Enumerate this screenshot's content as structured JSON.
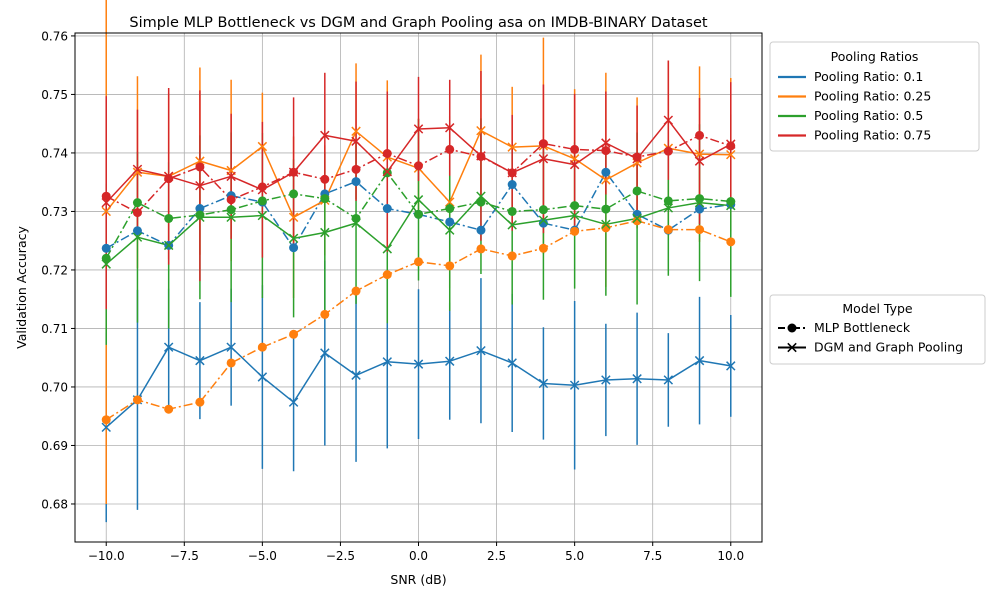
{
  "chart_data": {
    "type": "line",
    "title": "Simple MLP Bottleneck vs DGM and Graph Pooling asa on IMDB-BINARY Dataset",
    "xlabel": "SNR (dB)",
    "ylabel": "Validation Accuracy",
    "xlim": [
      -11,
      11
    ],
    "ylim": [
      0.6735,
      0.7605
    ],
    "xticks": [
      -10.0,
      -7.5,
      -5.0,
      -2.5,
      0.0,
      2.5,
      5.0,
      7.5,
      10.0
    ],
    "xtick_labels": [
      "−10.0",
      "−7.5",
      "−5.0",
      "−2.5",
      "0.0",
      "2.5",
      "5.0",
      "7.5",
      "10.0"
    ],
    "yticks": [
      0.68,
      0.69,
      0.7,
      0.71,
      0.72,
      0.73,
      0.74,
      0.75,
      0.76
    ],
    "ytick_labels": [
      "0.68",
      "0.69",
      "0.70",
      "0.71",
      "0.72",
      "0.73",
      "0.74",
      "0.75",
      "0.76"
    ],
    "grid": true,
    "x": [
      -10,
      -9,
      -8,
      -7,
      -6,
      -5,
      -4,
      -3,
      -2,
      -1,
      0,
      1,
      2,
      3,
      4,
      5,
      6,
      7,
      8,
      9,
      10
    ],
    "legends": [
      {
        "title": "Pooling Ratios",
        "placement": "outside-top-right",
        "entries": [
          "Pooling Ratio: 0.1",
          "Pooling Ratio: 0.25",
          "Pooling Ratio: 0.5",
          "Pooling Ratio: 0.75"
        ],
        "colors": [
          "#1f77b4",
          "#ff7f0e",
          "#2ca02c",
          "#d62728"
        ]
      },
      {
        "title": "Model Type",
        "placement": "outside-middle-right",
        "entries": [
          "MLP Bottleneck",
          "DGM and Graph Pooling"
        ],
        "markers": [
          "circle",
          "x"
        ],
        "line_styles": [
          "dashdot",
          "solid"
        ]
      }
    ],
    "series": [
      {
        "ratio": "Pooling Ratio: 0.1",
        "model": "MLP Bottleneck",
        "color": "#1f77b4",
        "marker": "circle",
        "line_style": "dashdot",
        "values": [
          0.7237,
          0.7267,
          0.7242,
          0.7305,
          0.7327,
          0.7316,
          0.7238,
          0.733,
          0.7351,
          0.7305,
          0.7295,
          0.7282,
          0.7268,
          0.7346,
          0.728,
          0.7268,
          0.7367,
          0.7295,
          0.7268,
          0.7304,
          0.7312
        ]
      },
      {
        "ratio": "Pooling Ratio: 0.1",
        "model": "DGM and Graph Pooling",
        "color": "#1f77b4",
        "marker": "x",
        "line_style": "solid",
        "values": [
          0.6931,
          0.6978,
          0.7068,
          0.7045,
          0.7068,
          0.7017,
          0.6974,
          0.7058,
          0.702,
          0.7043,
          0.7039,
          0.7044,
          0.7062,
          0.7041,
          0.7006,
          0.7003,
          0.7012,
          0.7014,
          0.7012,
          0.7045,
          0.7036
        ],
        "errors": [
          0.0162,
          0.0188,
          0.01,
          0.01,
          0.01,
          0.0157,
          0.0118,
          0.0158,
          0.0148,
          0.0148,
          0.0128,
          0.01,
          0.0124,
          0.0118,
          0.0096,
          0.0144,
          0.0096,
          0.0113,
          0.008,
          0.0109,
          0.0087
        ]
      },
      {
        "ratio": "Pooling Ratio: 0.25",
        "model": "MLP Bottleneck",
        "color": "#ff7f0e",
        "marker": "circle",
        "line_style": "dashdot",
        "values": [
          0.6944,
          0.6978,
          0.6962,
          0.6974,
          0.7041,
          0.7068,
          0.709,
          0.7124,
          0.7164,
          0.7192,
          0.7214,
          0.7207,
          0.7236,
          0.7224,
          0.7237,
          0.7266,
          0.7272,
          0.7284,
          0.7269,
          0.7269,
          0.7248
        ]
      },
      {
        "ratio": "Pooling Ratio: 0.25",
        "model": "DGM and Graph Pooling",
        "color": "#ff7f0e",
        "marker": "x",
        "line_style": "solid",
        "values": [
          0.73,
          0.7367,
          0.736,
          0.7386,
          0.737,
          0.7411,
          0.729,
          0.7319,
          0.7437,
          0.7393,
          0.7374,
          0.7316,
          0.7438,
          0.741,
          0.7412,
          0.739,
          0.7354,
          0.7383,
          0.7408,
          0.7398,
          0.7397
        ],
        "errors": [
          0.05,
          0.0164,
          0.0142,
          0.016,
          0.0155,
          0.0092,
          0.0138,
          0.0094,
          0.0116,
          0.0131,
          0.0085,
          0.0147,
          0.013,
          0.0103,
          0.0185,
          0.0119,
          0.0183,
          0.0112,
          0.015,
          0.015,
          0.0131
        ]
      },
      {
        "ratio": "Pooling Ratio: 0.5",
        "model": "MLP Bottleneck",
        "color": "#2ca02c",
        "marker": "circle",
        "line_style": "dashdot",
        "values": [
          0.722,
          0.7315,
          0.7288,
          0.7294,
          0.7303,
          0.7318,
          0.733,
          0.7322,
          0.7288,
          0.7366,
          0.7295,
          0.7305,
          0.7316,
          0.73,
          0.7303,
          0.731,
          0.7304,
          0.7335,
          0.7318,
          0.7322,
          0.7317
        ]
      },
      {
        "ratio": "Pooling Ratio: 0.5",
        "model": "DGM and Graph Pooling",
        "color": "#2ca02c",
        "marker": "x",
        "line_style": "solid",
        "values": [
          0.721,
          0.7256,
          0.7242,
          0.729,
          0.729,
          0.7293,
          0.7254,
          0.7264,
          0.728,
          0.7236,
          0.732,
          0.7268,
          0.7326,
          0.7277,
          0.7285,
          0.7293,
          0.7278,
          0.7288,
          0.7306,
          0.7315,
          0.731
        ],
        "errors": [
          0.0138,
          0.0146,
          0.0142,
          0.014,
          0.0145,
          0.0141,
          0.0135,
          0.0137,
          0.0138,
          0.0127,
          0.0138,
          0.0138,
          0.0133,
          0.0136,
          0.0136,
          0.0125,
          0.0122,
          0.0147,
          0.0116,
          0.0134,
          0.0156
        ]
      },
      {
        "ratio": "Pooling Ratio: 0.75",
        "model": "MLP Bottleneck",
        "color": "#d62728",
        "marker": "circle",
        "line_style": "dashdot",
        "values": [
          0.7326,
          0.7298,
          0.7356,
          0.7376,
          0.732,
          0.7342,
          0.7367,
          0.7355,
          0.7372,
          0.7399,
          0.7378,
          0.7406,
          0.7394,
          0.7366,
          0.7416,
          0.7406,
          0.7404,
          0.7393,
          0.7403,
          0.743,
          0.7412
        ]
      },
      {
        "ratio": "Pooling Ratio: 0.75",
        "model": "DGM and Graph Pooling",
        "color": "#d62728",
        "marker": "x",
        "line_style": "solid",
        "values": [
          0.7315,
          0.7372,
          0.736,
          0.7344,
          0.736,
          0.7337,
          0.7367,
          0.743,
          0.742,
          0.7368,
          0.7441,
          0.7443,
          0.7395,
          0.7366,
          0.739,
          0.738,
          0.7417,
          0.739,
          0.7456,
          0.7386,
          0.7415
        ],
        "errors": [
          0.0182,
          0.0102,
          0.0151,
          0.0163,
          0.0107,
          0.0116,
          0.0128,
          0.0107,
          0.0102,
          0.0137,
          0.0089,
          0.0082,
          0.0145,
          0.0099,
          0.0127,
          0.0121,
          0.0088,
          0.0091,
          0.0102,
          0.0108,
          0.0106
        ]
      }
    ]
  }
}
